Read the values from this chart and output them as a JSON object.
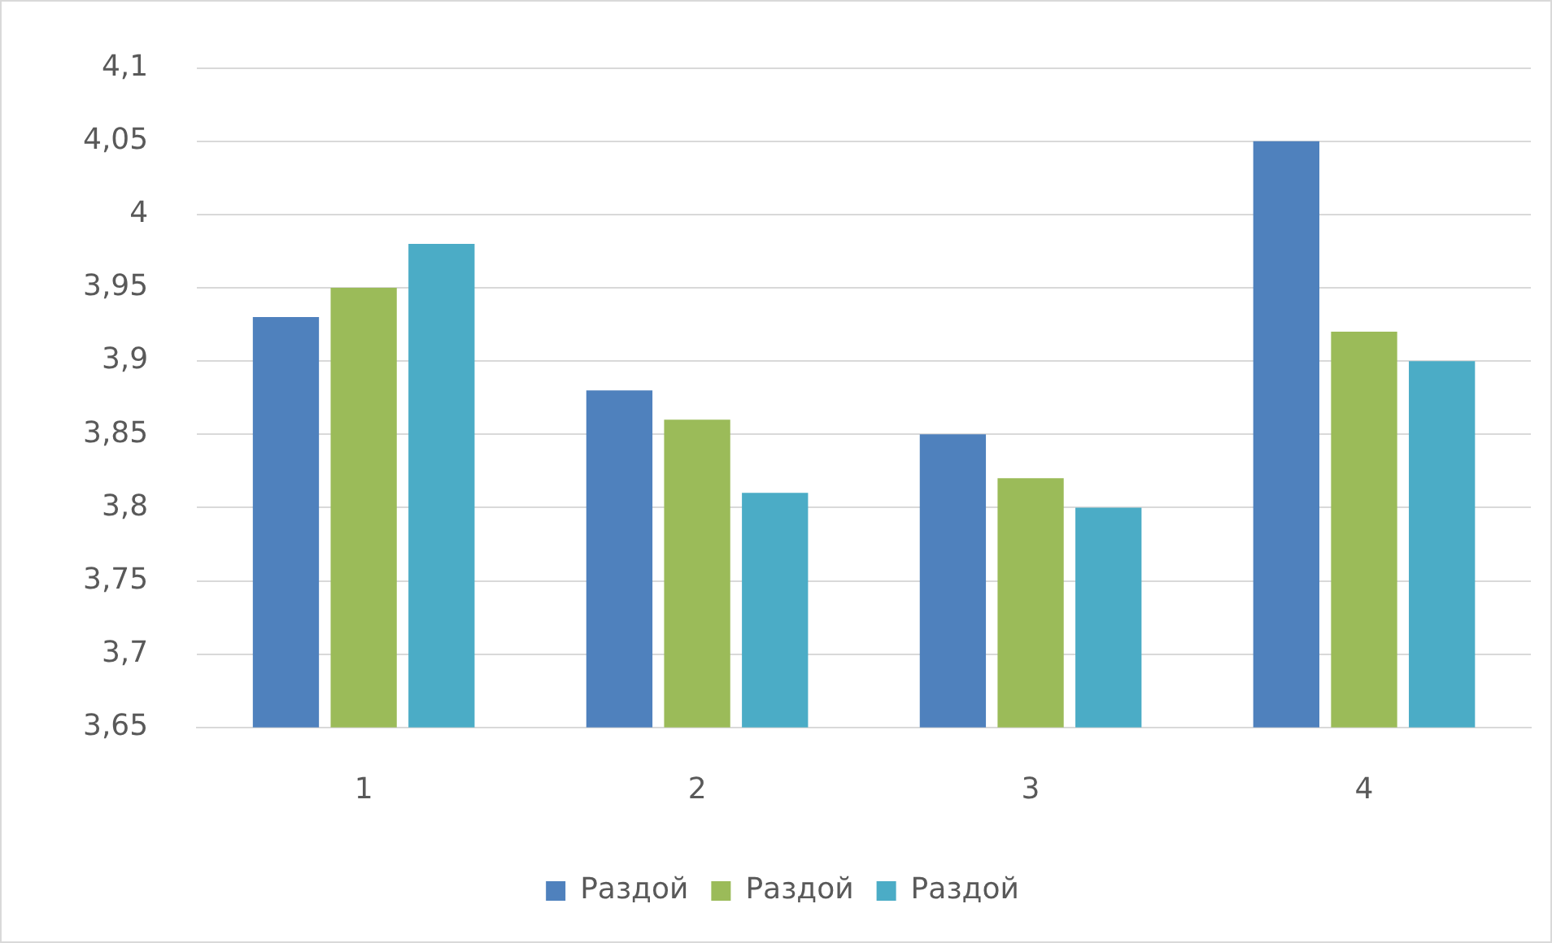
{
  "chart_data": {
    "type": "bar",
    "categories": [
      "1",
      "2",
      "3",
      "4"
    ],
    "series": [
      {
        "name": "Раздой",
        "color": "#4f81bd",
        "values": [
          3.93,
          3.88,
          3.85,
          4.05
        ]
      },
      {
        "name": "Раздой",
        "color": "#9bbb59",
        "values": [
          3.95,
          3.86,
          3.82,
          3.92
        ]
      },
      {
        "name": "Раздой",
        "color": "#4bacc6",
        "values": [
          3.98,
          3.81,
          3.8,
          3.9
        ]
      }
    ],
    "ylim": [
      3.65,
      4.1
    ],
    "yticks": [
      {
        "value": 3.65,
        "label": "3,65"
      },
      {
        "value": 3.7,
        "label": "3,7"
      },
      {
        "value": 3.75,
        "label": "3,75"
      },
      {
        "value": 3.8,
        "label": "3,8"
      },
      {
        "value": 3.85,
        "label": "3,85"
      },
      {
        "value": 3.9,
        "label": "3,9"
      },
      {
        "value": 3.95,
        "label": "3,95"
      },
      {
        "value": 4,
        "label": "4"
      },
      {
        "value": 4.05,
        "label": "4,05"
      },
      {
        "value": 4.1,
        "label": "4,1"
      }
    ],
    "grid": "y",
    "legend": "bottom"
  }
}
